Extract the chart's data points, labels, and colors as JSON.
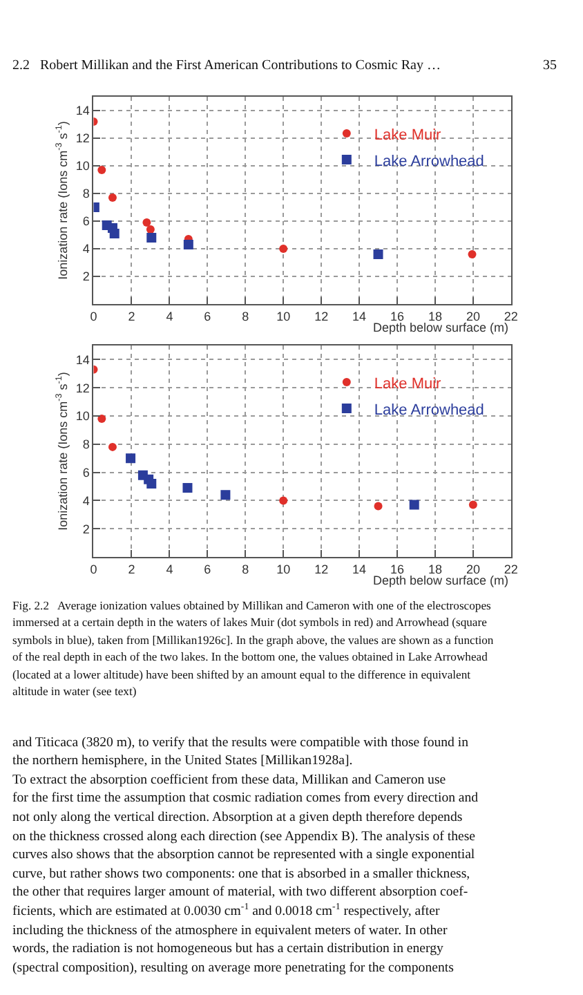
{
  "chart_data": [
    {
      "type": "scatter",
      "xlabel": "Depth below surface (m)",
      "ylabel": "Ionization rate (Ions cm$^{-3}$ s$^{-1}$)",
      "xlim": [
        0,
        22
      ],
      "xticks": [
        0,
        2,
        4,
        6,
        8,
        10,
        12,
        14,
        16,
        18,
        20,
        22
      ],
      "ylim": [
        0,
        15
      ],
      "yticks": [
        2,
        4,
        6,
        8,
        10,
        12,
        14
      ],
      "grid": true,
      "legend": "top right",
      "series": [
        {
          "name": "Lake Muir",
          "color": "#e0302a",
          "marker": "circle",
          "x": [
            0,
            0.43,
            1.0,
            2.8,
            3.0,
            5.0,
            10.0,
            19.95
          ],
          "values": [
            13.2,
            9.7,
            7.7,
            5.9,
            5.4,
            4.7,
            4.0,
            3.6
          ]
        },
        {
          "name": "Lake Arrowhead",
          "color": "#2b3d9c",
          "marker": "square",
          "x": [
            0.05,
            0.7,
            1.0,
            1.1,
            3.05,
            5.0,
            15.0
          ],
          "values": [
            7.0,
            5.7,
            5.5,
            5.1,
            4.8,
            4.3,
            3.6
          ]
        }
      ],
      "annotations": [
        "2.2   Robert Millikan and the First American Contributions to Cosmic Ray …",
        "35"
      ]
    },
    {
      "type": "scatter",
      "xlabel": "Depth below surface (m)",
      "ylabel": "Ionization rate (Ions cm$^{-3}$ s$^{-1}$)",
      "xlim": [
        0,
        22
      ],
      "xticks": [
        0,
        2,
        4,
        6,
        8,
        10,
        12,
        14,
        16,
        18,
        20,
        22
      ],
      "ylim": [
        0,
        15
      ],
      "yticks": [
        2,
        4,
        6,
        8,
        10,
        12,
        14
      ],
      "grid": true,
      "legend": "top right",
      "series": [
        {
          "name": "Lake Muir",
          "color": "#e0302a",
          "marker": "circle",
          "x": [
            0,
            0.43,
            1.0,
            2.8,
            3.0,
            5.0,
            10.0,
            15.0,
            20.0
          ],
          "values": [
            13.3,
            9.8,
            7.8,
            null,
            null,
            null,
            4.0,
            3.6,
            3.7
          ]
        },
        {
          "name": "Lake Arrowhead",
          "color": "#2b3d9c",
          "marker": "square",
          "x": [
            1.95,
            2.6,
            2.9,
            3.05,
            4.95,
            6.95,
            16.9
          ],
          "values": [
            7.0,
            5.8,
            5.5,
            5.2,
            4.9,
            4.4,
            3.7
          ]
        }
      ],
      "annotations": [
        "Fig. 2.2   Average ionization values obtained by Millikan and Cameron with one of the electroscopes",
        "immersed at a certain depth in the waters of lakes Muir (dot symbols in red) and Arrowhead (square",
        "symbols in blue), taken from [Millikan1926c]. In the graph above, the values are shown as a function",
        "of the real depth in each of the two lakes. In the bottom one, the values obtained in Lake Arrowhead",
        "(located at a lower altitude) have been shifted by an amount equal to the difference in equivalent",
        "altitude in water (see text)",
        "and Titicaca (3820 m), to verify that the results were compatible with those found in",
        "the northern hemisphere, in the United States [Millikan1928a].",
        "To extract the absorption coefficient from these data, Millikan and Cameron use",
        "for the first time the assumption that cosmic radiation comes from every direction and",
        "not only along the vertical direction. Absorption at a given depth therefore depends",
        "on the thickness crossed along each direction (see Appendix B). The analysis of these",
        "curves also shows that the absorption cannot be represented with a single exponential",
        "curve, but rather shows two components: one that is absorbed in a smaller thickness,",
        "the other that requires larger amount of material, with two different absorption coef-",
        "ficients, which are estimated at 0.0030 cm$^{-1}$ and 0.0018 cm$^{-1}$ respectively, after",
        "including the thickness of the atmosphere in equivalent meters of water. In other",
        "words, the radiation is not homogeneous but has a certain distribution in energy",
        "(spectral composition), resulting on average more penetrating for the components"
      ]
    }
  ]
}
